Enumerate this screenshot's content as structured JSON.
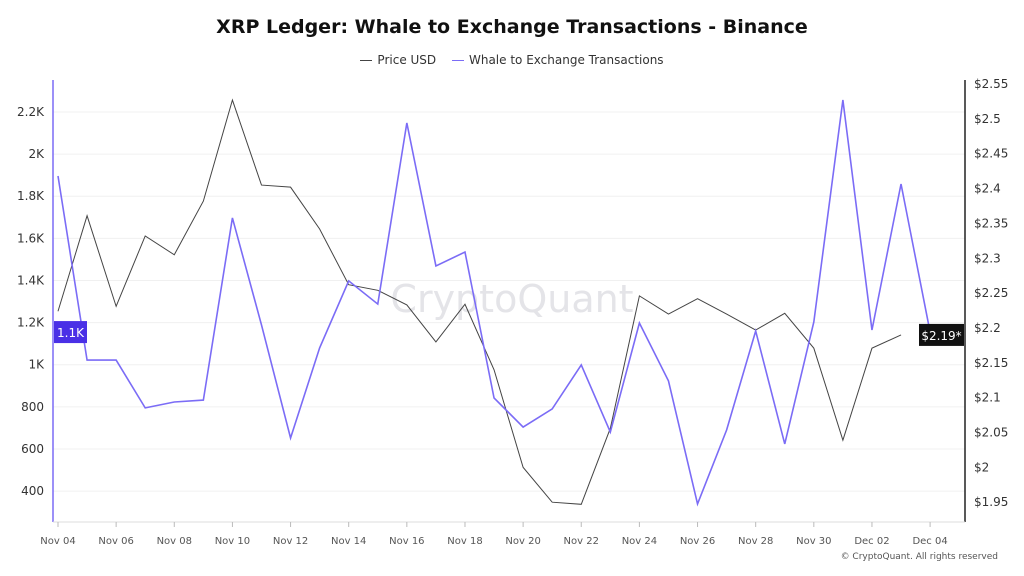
{
  "chart_data": {
    "type": "line",
    "title": "XRP Ledger: Whale to Exchange Transactions - Binance",
    "x_tick_labels": [
      "Nov 04",
      "Nov 06",
      "Nov 08",
      "Nov 10",
      "Nov 12",
      "Nov 14",
      "Nov 16",
      "Nov 18",
      "Nov 20",
      "Nov 22",
      "Nov 24",
      "Nov 26",
      "Nov 28",
      "Nov 30",
      "Dec 02",
      "Dec 04"
    ],
    "x": [
      "Nov 04",
      "Nov 05",
      "Nov 06",
      "Nov 07",
      "Nov 08",
      "Nov 09",
      "Nov 10",
      "Nov 11",
      "Nov 12",
      "Nov 13",
      "Nov 14",
      "Nov 15",
      "Nov 16",
      "Nov 17",
      "Nov 18",
      "Nov 19",
      "Nov 20",
      "Nov 21",
      "Nov 22",
      "Nov 23",
      "Nov 24",
      "Nov 25",
      "Nov 26",
      "Nov 27",
      "Nov 28",
      "Nov 29",
      "Nov 30",
      "Dec 01",
      "Dec 02",
      "Dec 03",
      "Dec 04"
    ],
    "left_axis": {
      "ticks": [
        "400",
        "600",
        "800",
        "1K",
        "1.2K",
        "1.4K",
        "1.6K",
        "1.8K",
        "2K",
        "2.2K"
      ],
      "tick_values": [
        400,
        600,
        800,
        1000,
        1200,
        1400,
        1600,
        1800,
        2000,
        2200
      ],
      "ylim": [
        260,
        2380
      ],
      "current_label": "1.1K"
    },
    "right_axis": {
      "ticks": [
        "$1.95",
        "$2",
        "$2.05",
        "$2.1",
        "$2.15",
        "$2.2",
        "$2.25",
        "$2.3",
        "$2.35",
        "$2.4",
        "$2.45",
        "$2.5",
        "$2.55"
      ],
      "tick_values": [
        1.95,
        2.0,
        2.05,
        2.1,
        2.15,
        2.2,
        2.25,
        2.3,
        2.35,
        2.4,
        2.45,
        2.5,
        2.55
      ],
      "ylim": [
        1.925,
        2.55
      ],
      "current_label": "$2.19*"
    },
    "series": [
      {
        "name": "Price USD",
        "axis": "right",
        "color": "#444444",
        "values": [
          2.224,
          2.361,
          2.231,
          2.332,
          2.305,
          2.382,
          2.527,
          2.405,
          2.402,
          2.342,
          2.262,
          2.254,
          2.233,
          2.18,
          2.234,
          2.14,
          2.0,
          1.95,
          1.947,
          2.056,
          2.246,
          2.22,
          2.242,
          2.22,
          2.197,
          2.221,
          2.171,
          2.039,
          2.171,
          2.19,
          null
        ]
      },
      {
        "name": "Whale to Exchange Transactions",
        "axis": "left",
        "color": "#7b6cf6",
        "values": [
          1896,
          1022,
          1022,
          795,
          823,
          832,
          1697,
          1189,
          652,
          1080,
          1398,
          1288,
          2148,
          1469,
          1535,
          842,
          704,
          790,
          999,
          680,
          1198,
          923,
          339,
          690,
          1160,
          624,
          1203,
          2257,
          1165,
          1858,
          1155
        ]
      }
    ],
    "grid": true,
    "legend_position": "top-center",
    "watermark": "CryptoQuant"
  },
  "credit": "© CryptoQuant. All rights reserved"
}
